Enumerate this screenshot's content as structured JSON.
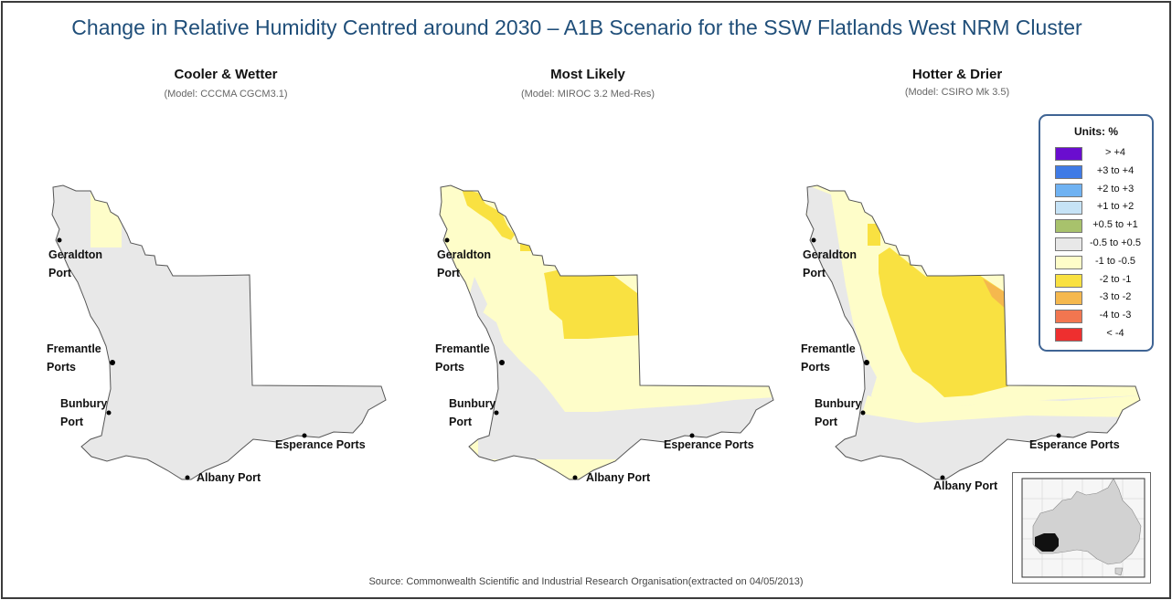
{
  "title": "Change in Relative Humidity Centred around 2030 – A1B Scenario for the SSW Flatlands West NRM Cluster",
  "panels": [
    {
      "title": "Cooler & Wetter",
      "model": "(Model: CCCMA CGCM3.1)"
    },
    {
      "title": "Most Likely",
      "model": "(Model: MIROC 3.2 Med-Res)"
    },
    {
      "title": "Hotter & Drier",
      "model": "(Model: CSIRO Mk 3.5)"
    }
  ],
  "ports": {
    "geraldton": [
      "Geraldton",
      "Port"
    ],
    "fremantle": [
      "Fremantle",
      "Ports"
    ],
    "bunbury": [
      "Bunbury",
      "Port"
    ],
    "esperance": "Esperance Ports",
    "albany": "Albany Port"
  },
  "legend": {
    "title": "Units: %",
    "items": [
      {
        "label": "> +4",
        "color": "#6a0dcf"
      },
      {
        "label": "+3 to +4",
        "color": "#3f7be6"
      },
      {
        "label": "+2 to +3",
        "color": "#6fb2f2"
      },
      {
        "label": "+1 to +2",
        "color": "#c6e3f6"
      },
      {
        "label": "+0.5 to +1",
        "color": "#a8c26c"
      },
      {
        "label": "-0.5 to +0.5",
        "color": "#e8e8e8"
      },
      {
        "label": "-1 to -0.5",
        "color": "#fefdc9"
      },
      {
        "label": "-2 to -1",
        "color": "#f9e141"
      },
      {
        "label": "-3 to -2",
        "color": "#f5b84e"
      },
      {
        "label": "-4 to -3",
        "color": "#f27650"
      },
      {
        "label": "< -4",
        "color": "#ee2f2f"
      }
    ]
  },
  "source": "Source: Commonwealth Scientific and Industrial Research Organisation(extracted on 04/05/2013)"
}
